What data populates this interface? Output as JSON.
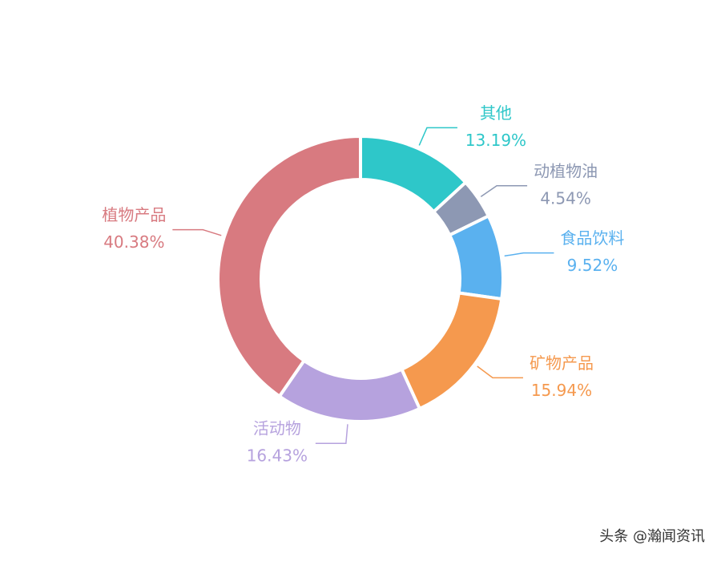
{
  "chart_data": {
    "type": "donut",
    "categories": [
      "其他",
      "动植物油",
      "食品饮料",
      "矿物产品",
      "活动物",
      "植物产品"
    ],
    "values": [
      13.19,
      4.54,
      9.52,
      15.94,
      16.43,
      40.38
    ],
    "value_labels": [
      "13.19%",
      "4.54%",
      "9.52%",
      "15.94%",
      "16.43%",
      "40.38%"
    ],
    "colors": [
      "#2ec7c9",
      "#8d98b3",
      "#5ab1ef",
      "#f5994e",
      "#b6a2de",
      "#d87a80"
    ]
  },
  "watermark": "头条 @瀚闻资讯"
}
